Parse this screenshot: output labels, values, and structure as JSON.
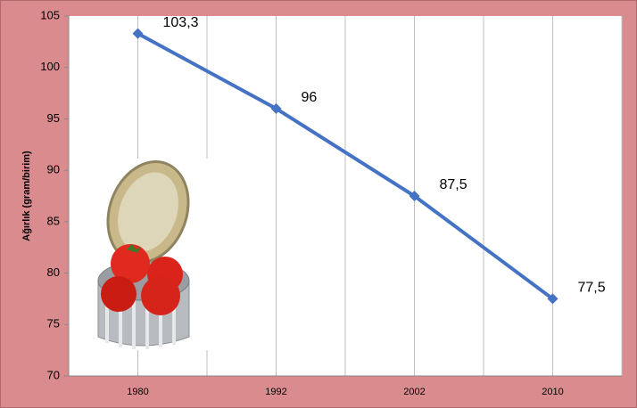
{
  "chart_data": {
    "type": "line",
    "y_label": "Ağırlık (gram/birim)",
    "categories": [
      "1980",
      "1992",
      "2002",
      "2010"
    ],
    "series": [
      {
        "name": null,
        "color": "#4472c4",
        "values": [
          103.3,
          96,
          87.5,
          77.5
        ],
        "value_labels": [
          "103,3",
          "96",
          "87,5",
          "77,5"
        ]
      }
    ],
    "ylim": [
      70,
      105
    ],
    "yticks": [
      70,
      75,
      80,
      85,
      90,
      95,
      100,
      105
    ],
    "grid": true
  }
}
